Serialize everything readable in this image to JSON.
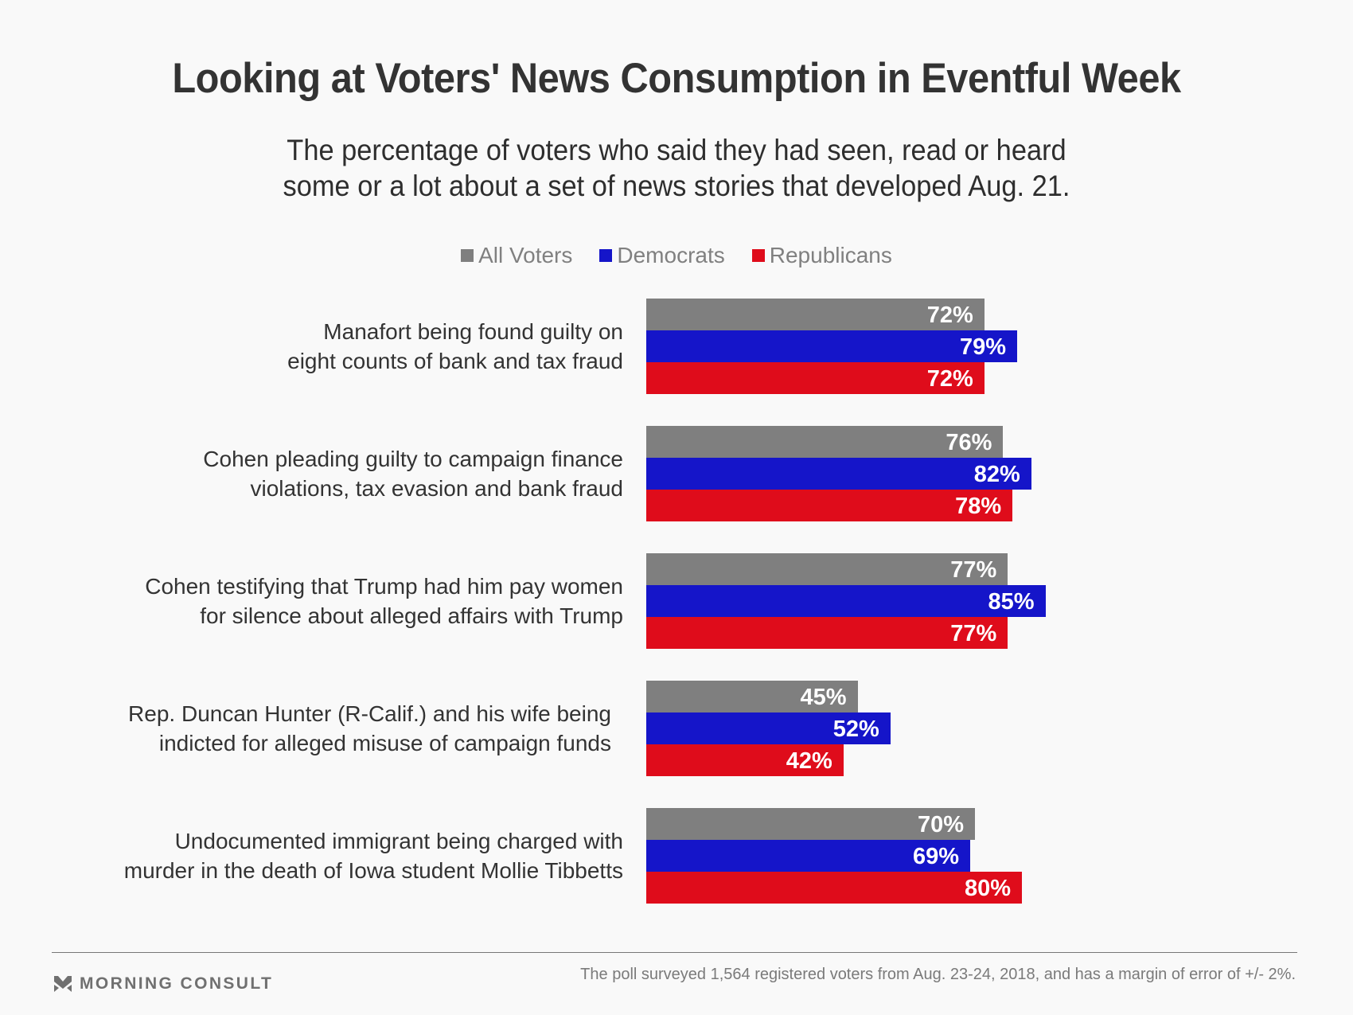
{
  "header": {
    "title": "Looking at Voters' News Consumption in Eventful Week",
    "subtitle_lines": [
      "The percentage of voters who said they had seen, read or heard",
      "some or a lot about a set of news stories that developed Aug. 21."
    ]
  },
  "legend": {
    "items": [
      {
        "label": "All Voters",
        "color": "#7f7f7f"
      },
      {
        "label": "Democrats",
        "color": "#1515c9"
      },
      {
        "label": "Republicans",
        "color": "#df0c1b"
      }
    ]
  },
  "chart_data": {
    "type": "bar",
    "orientation": "horizontal",
    "title": "Looking at Voters' News Consumption in Eventful Week",
    "subtitle": "The percentage of voters who said they had seen, read or heard some or a lot about a set of news stories that developed Aug. 21.",
    "xlabel": "",
    "ylabel": "",
    "value_suffix": "%",
    "xlim": [
      0,
      100
    ],
    "grid": false,
    "legend_position": "top-center",
    "categories": [
      {
        "lines": [
          "Manafort being found guilty on",
          "eight counts of bank and tax fraud"
        ]
      },
      {
        "lines": [
          "Cohen pleading guilty to campaign finance",
          "violations, tax evasion and bank fraud"
        ]
      },
      {
        "lines": [
          "Cohen testifying that Trump had him pay women",
          "for silence about alleged affairs with Trump"
        ]
      },
      {
        "lines": [
          "Rep. Duncan Hunter (R-Calif.) and his wife being",
          "indicted for alleged misuse of campaign funds"
        ]
      },
      {
        "lines": [
          "Undocumented immigrant being charged with",
          "murder in the death of Iowa student Mollie Tibbetts"
        ]
      }
    ],
    "series": [
      {
        "name": "All Voters",
        "color": "#7f7f7f",
        "values": [
          72,
          76,
          77,
          45,
          70
        ]
      },
      {
        "name": "Democrats",
        "color": "#1515c9",
        "values": [
          79,
          82,
          85,
          52,
          69
        ]
      },
      {
        "name": "Republicans",
        "color": "#df0c1b",
        "values": [
          72,
          78,
          77,
          42,
          80
        ]
      }
    ]
  },
  "footer": {
    "logo_text": "MORNING CONSULT",
    "logo_icon": "morning-consult-chevron-icon",
    "note": "The poll surveyed 1,564 registered voters from Aug. 23-24, 2018, and has a margin of error of +/- 2%."
  }
}
